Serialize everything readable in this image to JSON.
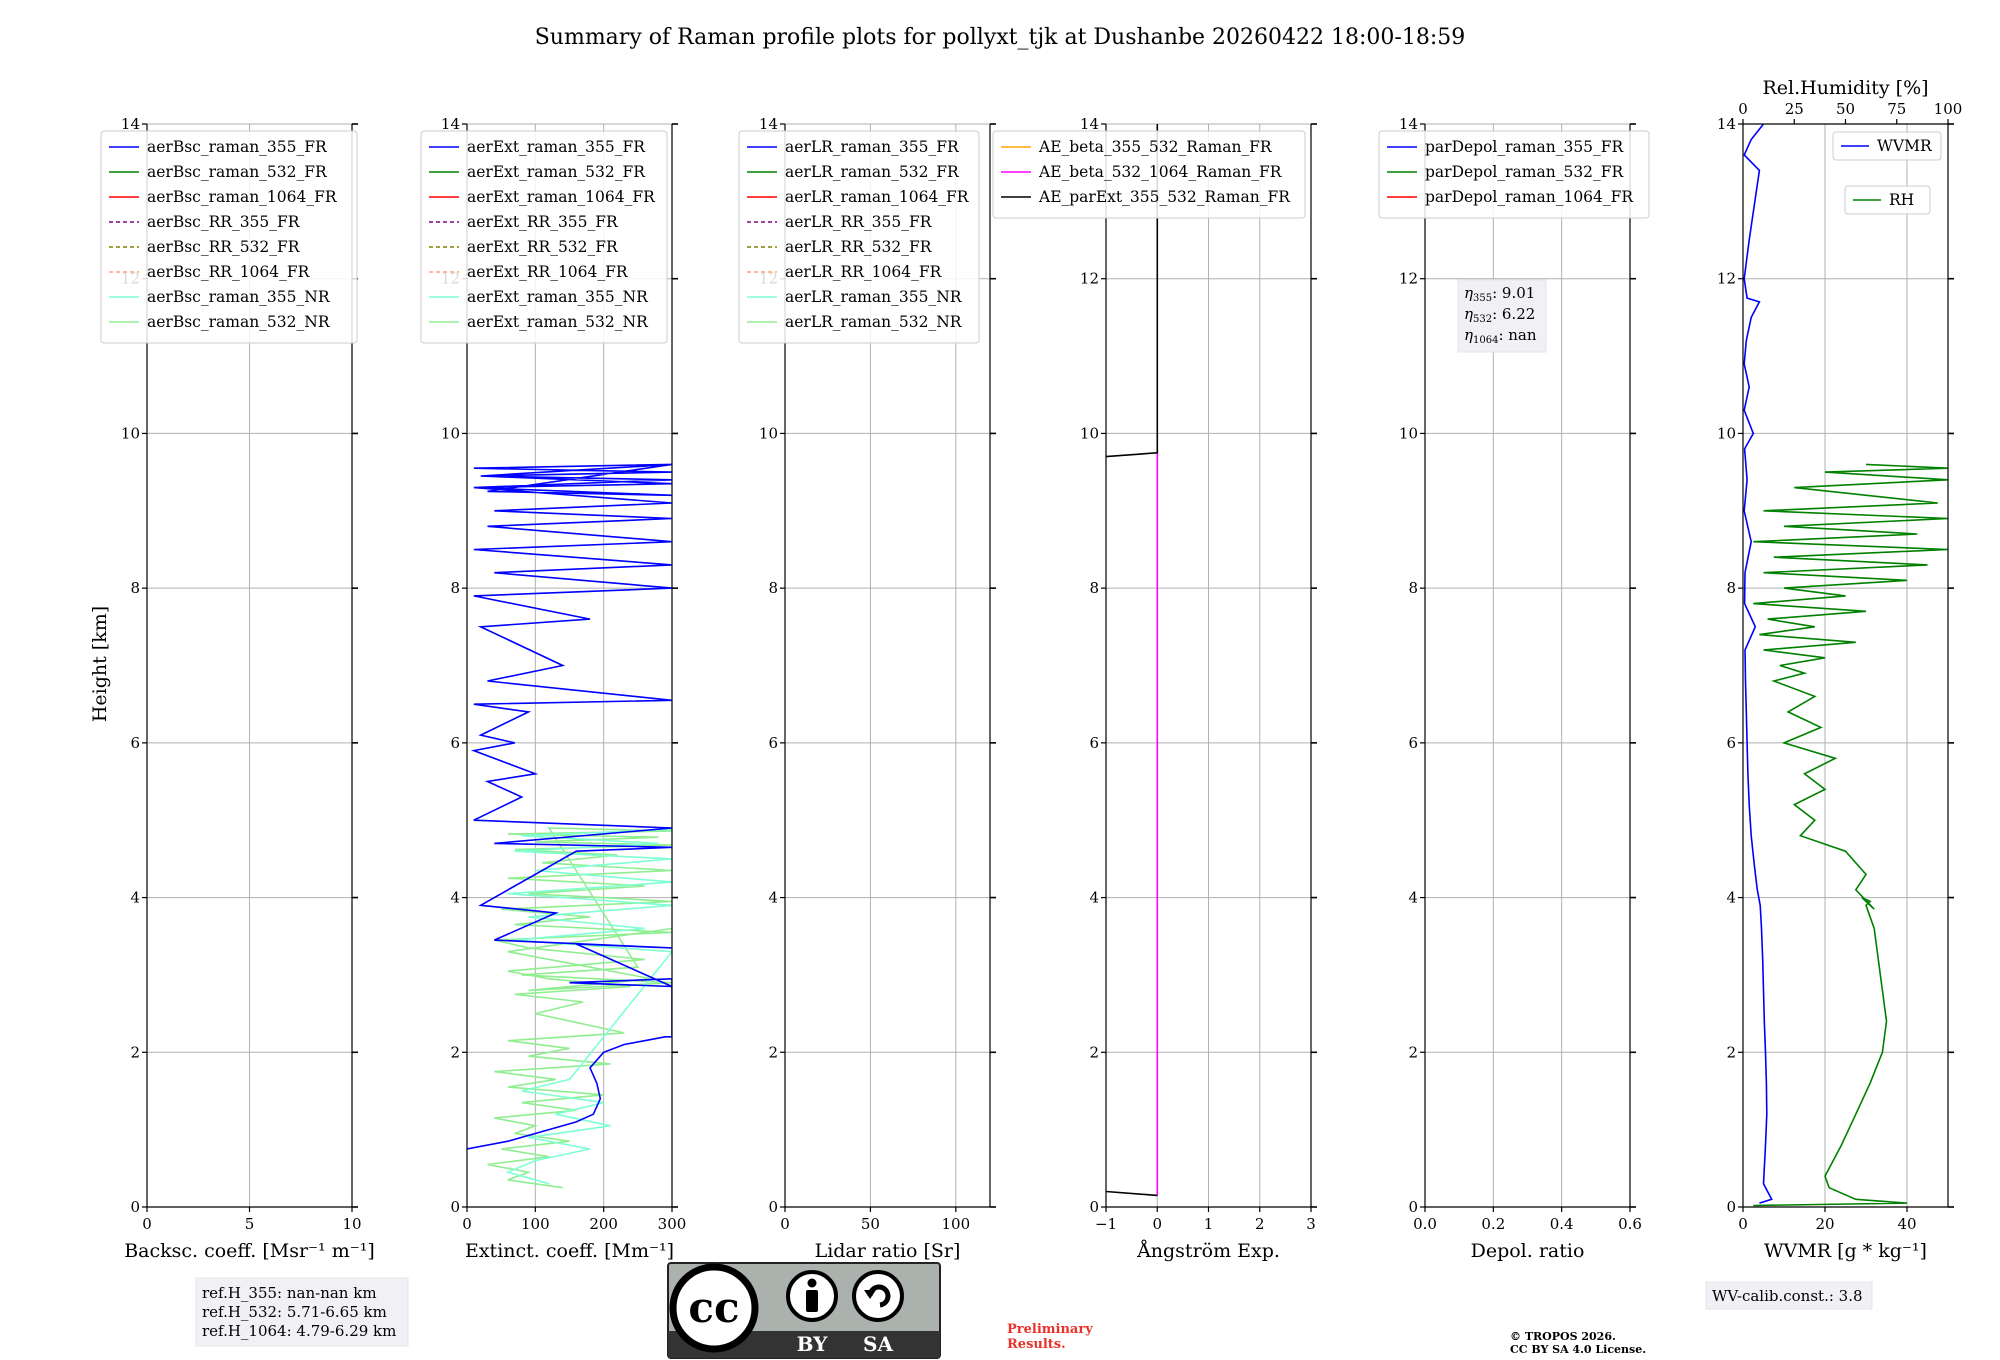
{
  "title": "Summary of Raman profile plots for pollyxt_tjk at Dushanbe 20260422 18:00-18:59",
  "ylabel": "Height [km]",
  "chart_data": [
    {
      "type": "line",
      "id": "bsc",
      "xlabel": "Backsc. coeff. [Msr⁻¹ m⁻¹]",
      "xlim": [
        0,
        10
      ],
      "ylim": [
        0,
        14
      ],
      "xticks": [
        "0",
        "5",
        "10"
      ],
      "yticks": [
        "0",
        "2",
        "4",
        "6",
        "8",
        "10",
        "12",
        "14"
      ],
      "legend": [
        {
          "label": "aerBsc_raman_355_FR",
          "color": "#0000ff",
          "style": "solid"
        },
        {
          "label": "aerBsc_raman_532_FR",
          "color": "#008000",
          "style": "solid"
        },
        {
          "label": "aerBsc_raman_1064_FR",
          "color": "#ff0000",
          "style": "solid"
        },
        {
          "label": "aerBsc_RR_355_FR",
          "color": "#800080",
          "style": "dashed"
        },
        {
          "label": "aerBsc_RR_532_FR",
          "color": "#808000",
          "style": "dashed"
        },
        {
          "label": "aerBsc_RR_1064_FR",
          "color": "#ffa07a",
          "style": "dashed"
        },
        {
          "label": "aerBsc_raman_355_NR",
          "color": "#7fffd4",
          "style": "solid"
        },
        {
          "label": "aerBsc_raman_532_NR",
          "color": "#90ee90",
          "style": "solid"
        }
      ],
      "series": []
    },
    {
      "type": "line",
      "id": "ext",
      "xlabel": "Extinct. coeff. [Mm⁻¹]",
      "xlim": [
        0,
        300
      ],
      "ylim": [
        0,
        14
      ],
      "xticks": [
        "0",
        "100",
        "200",
        "300"
      ],
      "yticks": [
        "0",
        "2",
        "4",
        "6",
        "8",
        "10",
        "12",
        "14"
      ],
      "legend": [
        {
          "label": "aerExt_raman_355_FR",
          "color": "#0000ff",
          "style": "solid"
        },
        {
          "label": "aerExt_raman_532_FR",
          "color": "#008000",
          "style": "solid"
        },
        {
          "label": "aerExt_raman_1064_FR",
          "color": "#ff0000",
          "style": "solid"
        },
        {
          "label": "aerExt_RR_355_FR",
          "color": "#800080",
          "style": "dashed"
        },
        {
          "label": "aerExt_RR_532_FR",
          "color": "#808000",
          "style": "dashed"
        },
        {
          "label": "aerExt_RR_1064_FR",
          "color": "#ffa07a",
          "style": "dashed"
        },
        {
          "label": "aerExt_raman_355_NR",
          "color": "#7fffd4",
          "style": "solid"
        },
        {
          "label": "aerExt_raman_532_NR",
          "color": "#90ee90",
          "style": "solid"
        }
      ],
      "series": [
        {
          "name": "aerExt_raman_532_NR",
          "color": "#90ee90",
          "x": [
            140,
            60,
            90,
            30,
            120,
            50,
            150,
            70,
            100,
            40,
            160,
            80,
            200,
            60,
            130,
            40,
            210,
            90,
            150,
            60,
            230,
            100,
            170,
            70,
            240,
            120,
            60,
            260,
            90,
            40,
            300,
            70,
            180,
            50,
            300,
            90,
            260,
            60,
            300,
            110,
            220,
            70,
            300,
            100,
            280,
            60,
            300,
            120,
            250,
            80,
            300,
            90,
            270,
            60,
            300
          ],
          "y": [
            0.25,
            0.35,
            0.45,
            0.55,
            0.65,
            0.75,
            0.85,
            0.95,
            1.05,
            1.15,
            1.25,
            1.35,
            1.45,
            1.55,
            1.65,
            1.75,
            1.85,
            1.95,
            2.05,
            2.15,
            2.25,
            2.5,
            2.65,
            2.75,
            2.85,
            2.95,
            3.05,
            3.2,
            3.35,
            3.45,
            3.55,
            3.65,
            3.75,
            3.85,
            3.95,
            4.05,
            4.15,
            4.25,
            4.35,
            4.45,
            4.55,
            4.62,
            4.68,
            4.72,
            4.78,
            4.82,
            4.86,
            4.9,
            3.1,
            3.0,
            2.9,
            2.8,
            2.95,
            3.3,
            3.6
          ]
        },
        {
          "name": "aerExt_raman_355_NR",
          "color": "#7fffd4",
          "x": [
            120,
            60,
            100,
            180,
            90,
            210,
            130,
            200,
            80,
            150,
            300,
            70,
            260,
            90,
            300,
            60,
            300,
            100,
            300,
            70,
            280,
            80,
            300
          ],
          "y": [
            0.3,
            0.45,
            0.6,
            0.75,
            0.9,
            1.05,
            1.2,
            1.35,
            1.5,
            1.65,
            3.3,
            3.45,
            3.6,
            3.75,
            3.9,
            4.05,
            4.2,
            4.35,
            4.5,
            4.6,
            4.7,
            4.8,
            4.88
          ]
        },
        {
          "name": "aerExt_raman_355_FR",
          "color": "#0000ff",
          "x": [
            0,
            60,
            120,
            160,
            185,
            195,
            190,
            180,
            200,
            230,
            260,
            290,
            300,
            300,
            150,
            300,
            160,
            300,
            40,
            130,
            20,
            160,
            300,
            40,
            300,
            10,
            80,
            30,
            100,
            10,
            70,
            20,
            90,
            10,
            300,
            30,
            140,
            20,
            180,
            10,
            300,
            40,
            300,
            10,
            300,
            30,
            300,
            40,
            300,
            10,
            300,
            20,
            300,
            10,
            300,
            20,
            300,
            10,
            300,
            30,
            300
          ],
          "y": [
            0.75,
            0.85,
            1.0,
            1.1,
            1.2,
            1.4,
            1.6,
            1.8,
            2.0,
            2.1,
            2.15,
            2.2,
            2.2,
            2.95,
            2.9,
            2.85,
            3.4,
            3.35,
            3.45,
            3.8,
            3.9,
            4.6,
            4.65,
            4.7,
            4.9,
            5.0,
            5.3,
            5.5,
            5.6,
            5.9,
            6.0,
            6.1,
            6.4,
            6.5,
            6.55,
            6.8,
            7.0,
            7.5,
            7.6,
            7.9,
            8.0,
            8.2,
            8.3,
            8.5,
            8.6,
            8.8,
            8.9,
            9.0,
            9.1,
            9.3,
            9.35,
            9.45,
            9.5,
            9.55,
            9.6,
            9.45,
            9.4,
            9.3,
            9.2,
            9.25,
            9.6
          ]
        }
      ]
    },
    {
      "type": "line",
      "id": "lr",
      "xlabel": "Lidar ratio [Sr]",
      "xlim": [
        0,
        120
      ],
      "ylim": [
        0,
        14
      ],
      "xticks": [
        "0",
        "50",
        "100"
      ],
      "yticks": [
        "0",
        "2",
        "4",
        "6",
        "8",
        "10",
        "12",
        "14"
      ],
      "legend": [
        {
          "label": "aerLR_raman_355_FR",
          "color": "#0000ff",
          "style": "solid"
        },
        {
          "label": "aerLR_raman_532_FR",
          "color": "#008000",
          "style": "solid"
        },
        {
          "label": "aerLR_raman_1064_FR",
          "color": "#ff0000",
          "style": "solid"
        },
        {
          "label": "aerLR_RR_355_FR",
          "color": "#800080",
          "style": "dashed"
        },
        {
          "label": "aerLR_RR_532_FR",
          "color": "#808000",
          "style": "dashed"
        },
        {
          "label": "aerLR_RR_1064_FR",
          "color": "#ffa07a",
          "style": "dashed"
        },
        {
          "label": "aerLR_raman_355_NR",
          "color": "#7fffd4",
          "style": "solid"
        },
        {
          "label": "aerLR_raman_532_NR",
          "color": "#90ee90",
          "style": "solid"
        }
      ],
      "series": []
    },
    {
      "type": "line",
      "id": "ae",
      "xlabel": "Ångström Exp.",
      "xlim": [
        -1,
        3
      ],
      "ylim": [
        0,
        14
      ],
      "xticks": [
        "−1",
        "0",
        "1",
        "2",
        "3"
      ],
      "yticks": [
        "0",
        "2",
        "4",
        "6",
        "8",
        "10",
        "12",
        "14"
      ],
      "legend": [
        {
          "label": "AE_beta_355_532_Raman_FR",
          "color": "#ffa500",
          "style": "solid"
        },
        {
          "label": "AE_beta_532_1064_Raman_FR",
          "color": "#ff00ff",
          "style": "solid"
        },
        {
          "label": "AE_parExt_355_532_Raman_FR",
          "color": "#000000",
          "style": "solid"
        }
      ],
      "series": [
        {
          "name": "AE_beta_532_1064_Raman_FR",
          "color": "#ff00ff",
          "x": [
            0,
            0
          ],
          "y": [
            0.15,
            9.75
          ]
        },
        {
          "name": "AE_parExt_355_532_Raman_FR",
          "color": "#000000",
          "x": [
            -1,
            0,
            0
          ],
          "y": [
            0.2,
            0.15,
            0.15
          ]
        },
        {
          "name": "AE_parExt_355_532_Raman_FR",
          "color": "#000000",
          "x": [
            -1,
            0,
            0,
            0
          ],
          "y": [
            9.7,
            9.75,
            9.75,
            14
          ]
        }
      ]
    },
    {
      "type": "line",
      "id": "depol",
      "xlabel": "Depol. ratio",
      "xlim": [
        0,
        0.6
      ],
      "ylim": [
        0,
        14
      ],
      "xticks": [
        "0.0",
        "0.2",
        "0.4",
        "0.6"
      ],
      "yticks": [
        "0",
        "2",
        "4",
        "6",
        "8",
        "10",
        "12",
        "14"
      ],
      "legend": [
        {
          "label": "parDepol_raman_355_FR",
          "color": "#0000ff",
          "style": "solid"
        },
        {
          "label": "parDepol_raman_532_FR",
          "color": "#008000",
          "style": "solid"
        },
        {
          "label": "parDepol_raman_1064_FR",
          "color": "#ff0000",
          "style": "solid"
        }
      ],
      "annotation": {
        "eta355": "9.01",
        "eta532": "6.22",
        "eta1064": "nan"
      },
      "series": []
    },
    {
      "type": "line",
      "id": "wv",
      "xlabel": "WVMR [g * kg⁻¹]",
      "xlim": [
        0,
        50
      ],
      "ylim": [
        0,
        14
      ],
      "xticks": [
        "0",
        "20",
        "40"
      ],
      "yticks": [
        "0",
        "2",
        "4",
        "6",
        "8",
        "10",
        "12",
        "14"
      ],
      "x2label": "Rel.Humidity [%]",
      "x2lim": [
        0,
        100
      ],
      "x2ticks": [
        "0",
        "25",
        "50",
        "75",
        "100"
      ],
      "legend": [
        {
          "label": "WVMR",
          "color": "#0000ff",
          "style": "solid"
        },
        {
          "label": "RH",
          "color": "#008000",
          "style": "solid"
        }
      ],
      "series": [
        {
          "name": "WVMR",
          "color": "#0000ff",
          "axis": "bottom",
          "x": [
            4,
            7,
            5,
            5.5,
            5.8,
            5.7,
            5.5,
            5.2,
            5,
            4.8,
            4.5,
            4.2,
            3.5,
            2.8,
            2,
            1.5,
            1.2,
            1,
            0.8,
            0.6,
            0.5,
            3,
            0.4,
            0.5,
            2,
            0.3,
            1,
            0.4,
            2.5,
            0.3,
            1.5,
            0.3,
            0.8,
            2,
            4,
            1,
            0.3,
            1.5,
            4,
            0.3,
            2,
            5
          ],
          "y": [
            0.05,
            0.1,
            0.3,
            0.8,
            1.2,
            1.6,
            2.0,
            2.4,
            2.8,
            3.2,
            3.6,
            3.9,
            4.1,
            4.4,
            4.8,
            5.2,
            5.6,
            6.0,
            6.4,
            6.8,
            7.2,
            7.5,
            7.8,
            8.2,
            8.6,
            9.0,
            9.4,
            9.8,
            10.0,
            10.3,
            10.6,
            10.9,
            11.2,
            11.5,
            11.7,
            11.75,
            12.0,
            12.5,
            13.4,
            13.6,
            13.8,
            14.0
          ]
        },
        {
          "name": "RH",
          "color": "#008000",
          "axis": "top",
          "x": [
            5,
            80,
            55,
            42,
            40,
            48,
            55,
            62,
            68,
            70,
            68,
            66,
            64,
            60,
            62,
            58,
            64,
            55,
            60,
            50,
            28,
            35,
            25,
            40,
            30,
            45,
            20,
            38,
            22,
            35,
            15,
            30,
            18,
            40,
            10,
            55,
            8,
            35,
            12,
            60,
            5,
            50,
            20,
            80,
            10,
            90,
            15,
            100,
            5,
            85,
            20,
            100,
            10,
            95,
            25,
            100,
            40,
            100,
            60
          ],
          "y": [
            0.02,
            0.05,
            0.1,
            0.25,
            0.4,
            0.8,
            1.2,
            1.6,
            2.0,
            2.4,
            2.8,
            3.2,
            3.6,
            3.9,
            3.95,
            4.0,
            3.85,
            4.1,
            4.3,
            4.6,
            4.8,
            5.0,
            5.2,
            5.4,
            5.6,
            5.8,
            6.0,
            6.2,
            6.4,
            6.6,
            6.8,
            6.9,
            7.0,
            7.1,
            7.2,
            7.3,
            7.4,
            7.5,
            7.6,
            7.7,
            7.8,
            7.9,
            8.0,
            8.1,
            8.2,
            8.3,
            8.4,
            8.5,
            8.6,
            8.7,
            8.8,
            8.9,
            9.0,
            9.1,
            9.3,
            9.4,
            9.5,
            9.55,
            9.6
          ]
        }
      ]
    }
  ],
  "notes": {
    "ref_h_355": "ref.H_355: nan-nan km",
    "ref_h_532": "ref.H_532: 5.71-6.65 km",
    "ref_h_1064": "ref.H_1064: 4.79-6.29 km",
    "preliminary_1": "Preliminary",
    "preliminary_2": "Results.",
    "copyright_1": "© TROPOS 2026.",
    "copyright_2": "CC BY SA 4.0 License.",
    "wv_calib": "WV-calib.const.: 3.8"
  },
  "license_badge": {
    "cc": "cc",
    "by": "BY",
    "sa": "SA"
  },
  "colors": {
    "grid": "#b0b0b0",
    "note_bg": "#f0f0f5",
    "badge_bg": "#abb1ad",
    "badge_dark": "#333333",
    "prelim": "#e8322a"
  }
}
